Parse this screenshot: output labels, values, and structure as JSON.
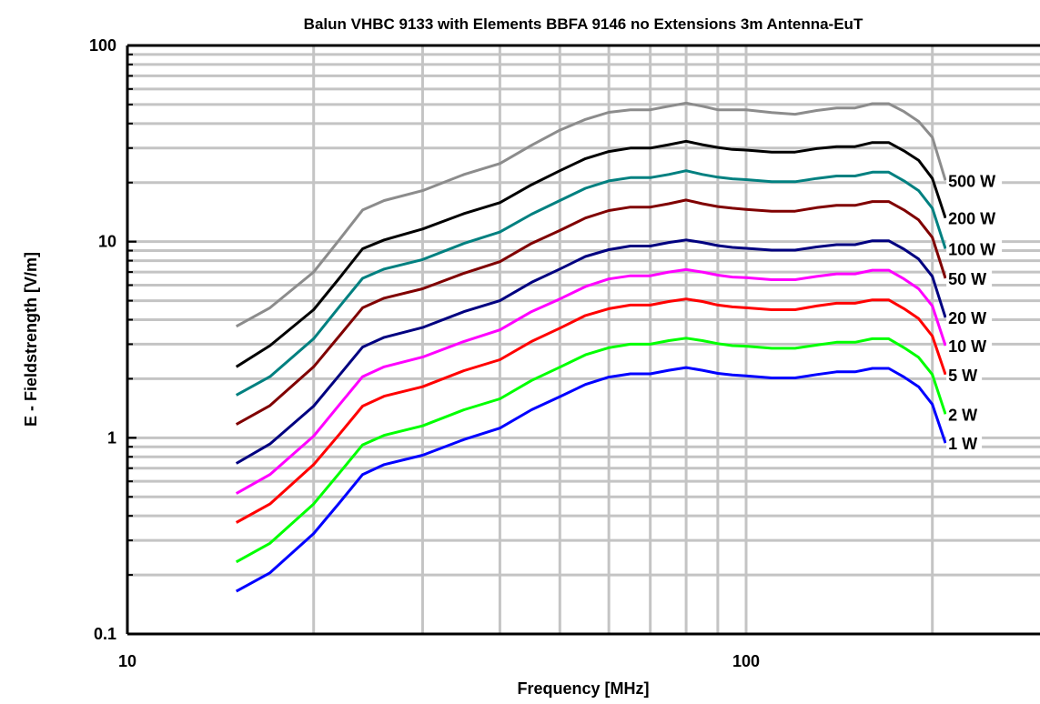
{
  "chart_data": {
    "type": "line",
    "title": "Balun VHBC 9133 with Elements BBFA 9146 no Extensions 3m Antenna-EuT",
    "xlabel": "Frequency [MHz]",
    "ylabel": "E - Fieldstrength [V/m]",
    "x_scale": "log",
    "y_scale": "log",
    "xlim": [
      10,
      300
    ],
    "ylim": [
      0.1,
      100
    ],
    "x_tick_labels": [
      {
        "value": 10,
        "label": "10"
      },
      {
        "value": 100,
        "label": "100"
      }
    ],
    "y_tick_labels": [
      {
        "value": 0.1,
        "label": "0.1"
      },
      {
        "value": 1,
        "label": "1"
      },
      {
        "value": 10,
        "label": "10"
      },
      {
        "value": 100,
        "label": "100"
      }
    ],
    "grid": true,
    "legend": "series labels at right end of each curve",
    "x": [
      15,
      17,
      20,
      22,
      24,
      26,
      30,
      35,
      40,
      45,
      50,
      55,
      60,
      65,
      70,
      75,
      80,
      85,
      90,
      95,
      100,
      110,
      120,
      130,
      140,
      150,
      160,
      170,
      180,
      190,
      200,
      210
    ],
    "series": [
      {
        "name": "500 W",
        "color": "#8c8c8c",
        "values": [
          3.7,
          4.6,
          7.0,
          10.2,
          14.5,
          16.2,
          18.2,
          22.0,
          25.0,
          31.0,
          37.0,
          42.0,
          45.6,
          47.0,
          47.0,
          49.0,
          50.8,
          49.0,
          47.0,
          47.0,
          47.0,
          45.5,
          44.6,
          46.6,
          48.0,
          48.0,
          50.5,
          50.5,
          46.0,
          41.0,
          34.0,
          20.5
        ]
      },
      {
        "name": "200 W",
        "color": "#000000",
        "values": [
          2.3,
          2.95,
          4.5,
          6.5,
          9.2,
          10.2,
          11.6,
          13.9,
          15.8,
          19.5,
          23.0,
          26.5,
          28.8,
          30.0,
          30.0,
          31.2,
          32.5,
          31.2,
          30.2,
          29.5,
          29.3,
          28.6,
          28.6,
          29.8,
          30.5,
          30.5,
          32.0,
          32.0,
          29.0,
          26.0,
          21.0,
          13.2
        ]
      },
      {
        "name": "100 W",
        "color": "#008080",
        "values": [
          1.65,
          2.05,
          3.2,
          4.65,
          6.5,
          7.25,
          8.1,
          9.8,
          11.2,
          13.8,
          16.2,
          18.7,
          20.4,
          21.2,
          21.2,
          22.0,
          23.0,
          22.0,
          21.3,
          20.9,
          20.7,
          20.2,
          20.2,
          21.0,
          21.6,
          21.6,
          22.6,
          22.6,
          20.4,
          18.2,
          14.8,
          9.2
        ]
      },
      {
        "name": "50 W",
        "color": "#800000",
        "values": [
          1.17,
          1.46,
          2.3,
          3.3,
          4.6,
          5.15,
          5.75,
          6.9,
          7.9,
          9.8,
          11.4,
          13.2,
          14.4,
          15.0,
          15.0,
          15.6,
          16.3,
          15.6,
          15.1,
          14.8,
          14.6,
          14.3,
          14.3,
          14.9,
          15.3,
          15.3,
          16.0,
          16.0,
          14.5,
          12.9,
          10.5,
          6.5
        ]
      },
      {
        "name": "20 W",
        "color": "#000080",
        "values": [
          0.74,
          0.93,
          1.45,
          2.08,
          2.9,
          3.25,
          3.65,
          4.4,
          5.0,
          6.2,
          7.25,
          8.4,
          9.1,
          9.5,
          9.5,
          9.9,
          10.2,
          9.9,
          9.55,
          9.35,
          9.25,
          9.05,
          9.05,
          9.4,
          9.65,
          9.65,
          10.1,
          10.1,
          9.15,
          8.15,
          6.65,
          4.1
        ]
      },
      {
        "name": "10 W",
        "color": "#ff00ff",
        "values": [
          0.52,
          0.65,
          1.02,
          1.47,
          2.05,
          2.3,
          2.58,
          3.1,
          3.55,
          4.4,
          5.1,
          5.9,
          6.45,
          6.7,
          6.7,
          7.0,
          7.2,
          7.0,
          6.75,
          6.6,
          6.55,
          6.4,
          6.4,
          6.65,
          6.85,
          6.85,
          7.15,
          7.15,
          6.45,
          5.75,
          4.7,
          2.95
        ]
      },
      {
        "name": "5 W",
        "color": "#ff0000",
        "values": [
          0.37,
          0.46,
          0.73,
          1.04,
          1.45,
          1.63,
          1.82,
          2.2,
          2.5,
          3.1,
          3.62,
          4.2,
          4.55,
          4.75,
          4.75,
          4.95,
          5.1,
          4.95,
          4.75,
          4.65,
          4.6,
          4.5,
          4.5,
          4.7,
          4.85,
          4.85,
          5.05,
          5.05,
          4.55,
          4.05,
          3.3,
          2.1
        ]
      },
      {
        "name": "2 W",
        "color": "#00ff00",
        "values": [
          0.233,
          0.29,
          0.46,
          0.66,
          0.92,
          1.03,
          1.15,
          1.39,
          1.58,
          1.96,
          2.29,
          2.65,
          2.88,
          3.0,
          3.0,
          3.13,
          3.22,
          3.13,
          3.02,
          2.95,
          2.93,
          2.86,
          2.86,
          2.97,
          3.07,
          3.07,
          3.2,
          3.2,
          2.88,
          2.57,
          2.1,
          1.32
        ]
      },
      {
        "name": "1 W",
        "color": "#0000ff",
        "values": [
          0.165,
          0.205,
          0.325,
          0.465,
          0.65,
          0.73,
          0.815,
          0.98,
          1.12,
          1.39,
          1.62,
          1.87,
          2.04,
          2.12,
          2.12,
          2.21,
          2.28,
          2.21,
          2.13,
          2.09,
          2.07,
          2.02,
          2.02,
          2.1,
          2.17,
          2.17,
          2.26,
          2.26,
          2.04,
          1.82,
          1.48,
          0.94
        ]
      }
    ]
  }
}
